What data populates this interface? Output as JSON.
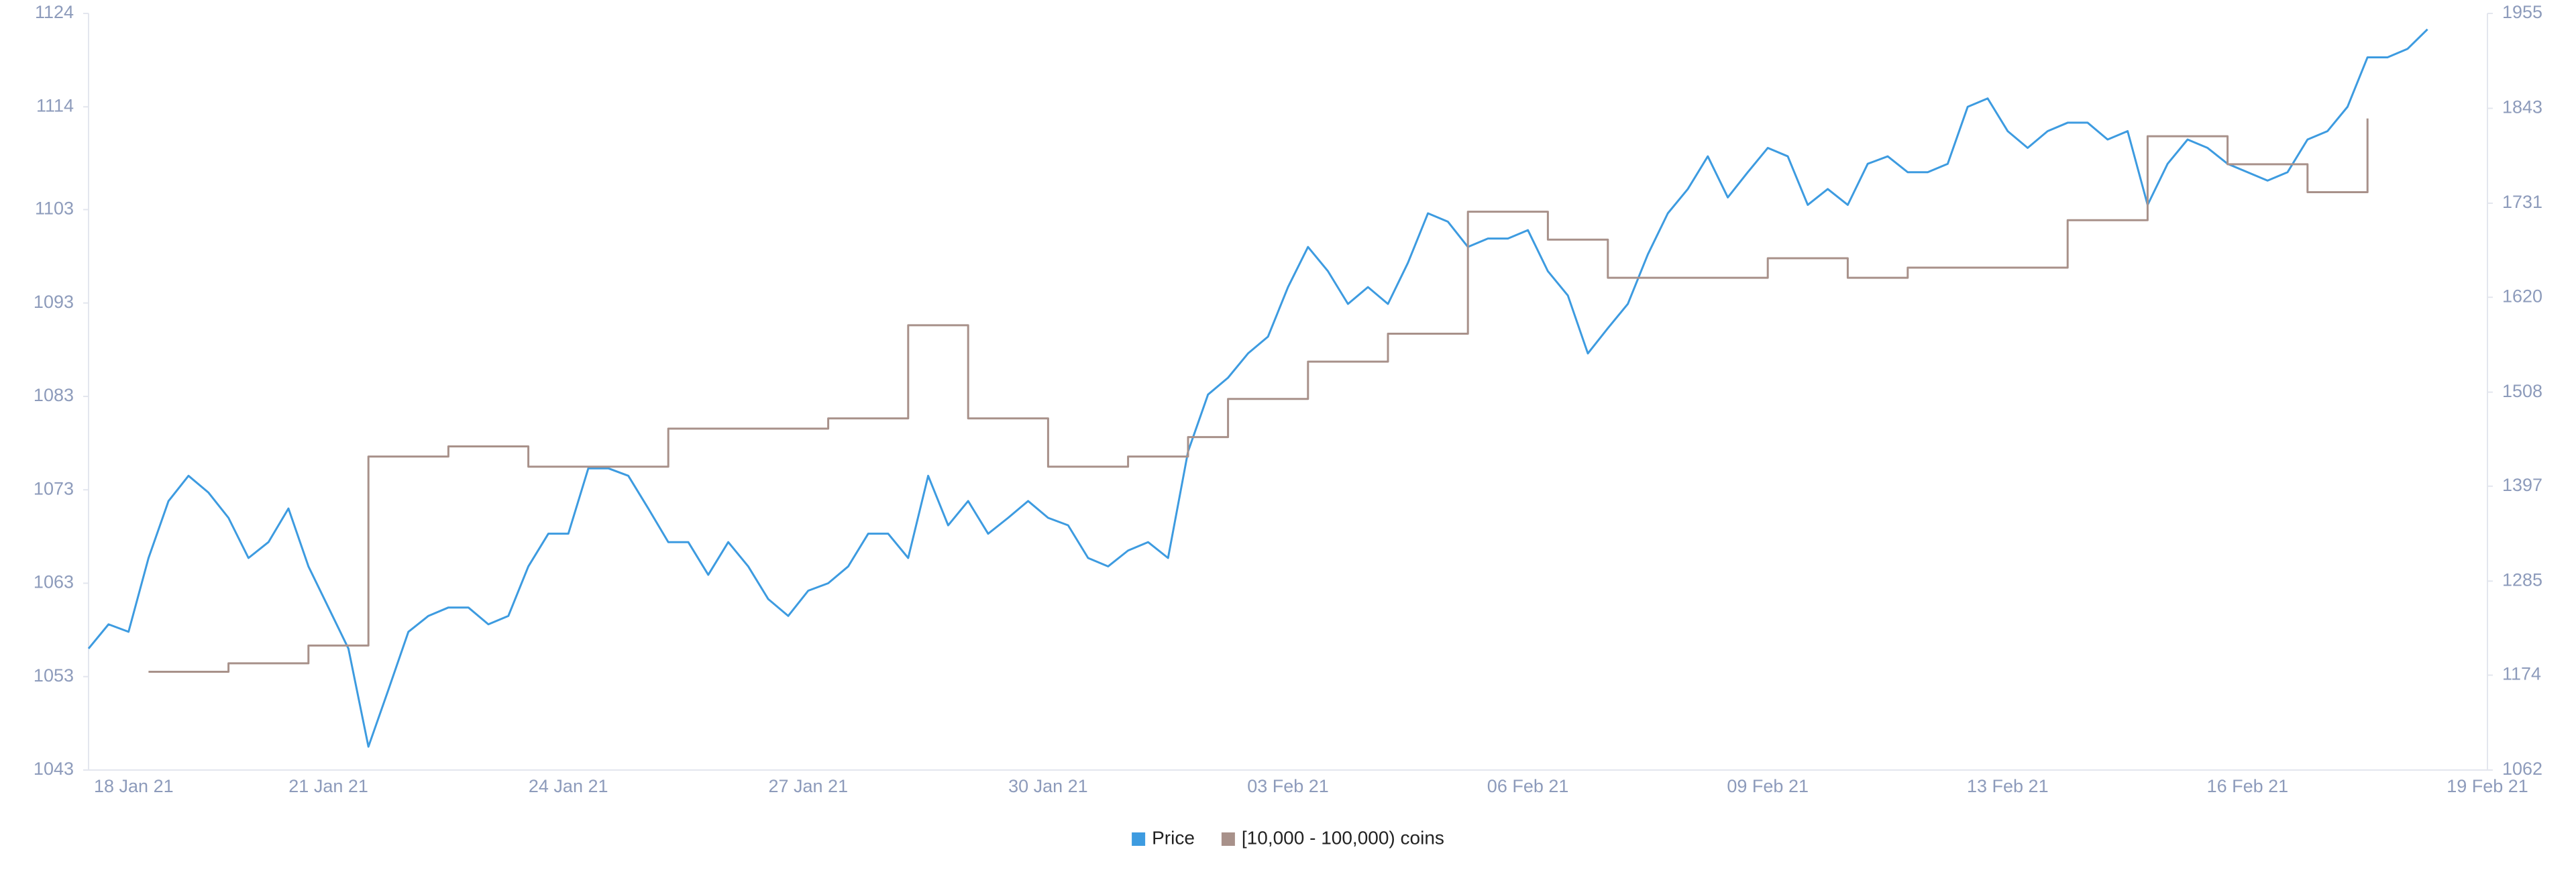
{
  "chart_data": {
    "type": "line",
    "categories": [
      "18 Jan 21",
      null,
      null,
      null,
      null,
      null,
      null,
      null,
      null,
      null,
      null,
      null,
      "21 Jan 21",
      null,
      null,
      null,
      null,
      null,
      null,
      null,
      null,
      null,
      null,
      null,
      "24 Jan 21",
      null,
      null,
      null,
      null,
      null,
      null,
      null,
      null,
      null,
      null,
      null,
      "27 Jan 21",
      null,
      null,
      null,
      null,
      null,
      null,
      null,
      null,
      null,
      null,
      null,
      "30 Jan 21",
      null,
      null,
      null,
      null,
      null,
      null,
      null,
      null,
      null,
      null,
      null,
      "03 Feb 21",
      null,
      null,
      null,
      null,
      null,
      null,
      null,
      null,
      null,
      null,
      null,
      "06 Feb 21",
      null,
      null,
      null,
      null,
      null,
      null,
      null,
      null,
      null,
      null,
      null,
      "09 Feb 21",
      null,
      null,
      null,
      null,
      null,
      null,
      null,
      null,
      null,
      null,
      null,
      "13 Feb 21",
      null,
      null,
      null,
      null,
      null,
      null,
      null,
      null,
      null,
      null,
      null,
      "16 Feb 21",
      null,
      null,
      null,
      null,
      null,
      null,
      null,
      null,
      null,
      null,
      null,
      "19 Feb 21"
    ],
    "series": [
      {
        "name": "Price",
        "color": "#3d9be0",
        "axis": "y",
        "values": [
          1056,
          1058.6,
          1057.8,
          1065.7,
          1071.8,
          1074.5,
          1072.7,
          1070,
          1065.7,
          1067.4,
          1071,
          1064.8,
          1060.4,
          1056,
          1045.5,
          1051.6,
          1057.8,
          1059.5,
          1060.4,
          1060.4,
          1058.6,
          1059.5,
          1064.8,
          1068.3,
          1068.3,
          1075.3,
          1075.3,
          1074.5,
          1071,
          1067.4,
          1067.4,
          1063.9,
          1067.4,
          1064.8,
          1061.3,
          1059.5,
          1062.2,
          1063,
          1064.8,
          1068.3,
          1068.3,
          1065.7,
          1074.5,
          1069.2,
          1071.8,
          1068.3,
          1070,
          1071.8,
          1070,
          1069.2,
          1065.7,
          1064.8,
          1066.5,
          1067.4,
          1065.7,
          1077.1,
          1083.2,
          1085,
          1087.6,
          1089.4,
          1094.7,
          1099,
          1096.4,
          1092.9,
          1094.7,
          1092.9,
          1097.3,
          1102.6,
          1101.7,
          1099,
          1099.9,
          1099.9,
          1100.8,
          1096.4,
          1093.8,
          1087.6,
          1090.3,
          1092.9,
          1098.2,
          1102.6,
          1105.2,
          1108.7,
          1104.3,
          1107,
          1109.6,
          1108.7,
          1103.5,
          1105.2,
          1103.5,
          1107.9,
          1108.7,
          1107,
          1107,
          1107.9,
          1114,
          1114.9,
          1111.4,
          1109.6,
          1111.4,
          1112.3,
          1112.3,
          1110.5,
          1111.4,
          1103.5,
          1107.9,
          1110.5,
          1109.6,
          1107.9,
          1107,
          1106.1,
          1107,
          1110.5,
          1111.4,
          1114,
          1119.3,
          1119.3,
          1120.2,
          1122.3,
          null,
          null,
          null
        ]
      },
      {
        "name": "[10,000 - 100,000) coins",
        "color": "#a8918a",
        "axis": "y2",
        "step": true,
        "values": [
          null,
          null,
          null,
          1178,
          1178,
          1178,
          1178,
          1188,
          1188,
          1188,
          1188,
          1209,
          1209,
          1209,
          1432,
          1432,
          1432,
          1432,
          1444,
          1444,
          1444,
          1444,
          1420,
          1420,
          1420,
          1420,
          1420,
          1420,
          1420,
          1465,
          1465,
          1465,
          1465,
          1465,
          1465,
          1465,
          1465,
          1477,
          1477,
          1477,
          1477,
          1587,
          1587,
          1587,
          1477,
          1477,
          1477,
          1477,
          1420,
          1420,
          1420,
          1420,
          1432,
          1432,
          1432,
          1455,
          1455,
          1500,
          1500,
          1500,
          1500,
          1544,
          1544,
          1544,
          1544,
          1577,
          1577,
          1577,
          1577,
          1721,
          1721,
          1721,
          1721,
          1688,
          1688,
          1688,
          1643,
          1643,
          1643,
          1643,
          1643,
          1643,
          1643,
          1643,
          1666,
          1666,
          1666,
          1666,
          1643,
          1643,
          1643,
          1655,
          1655,
          1655,
          1655,
          1655,
          1655,
          1655,
          1655,
          1711,
          1711,
          1711,
          1711,
          1810,
          1810,
          1810,
          1810,
          1777,
          1777,
          1777,
          1777,
          1744,
          1744,
          1744,
          1831,
          null,
          null,
          null,
          null,
          null,
          null
        ]
      }
    ],
    "ylim": [
      1043,
      1124
    ],
    "yticks": [
      1043,
      1053,
      1063,
      1073,
      1083,
      1093,
      1103,
      1114,
      1124
    ],
    "y2lim": [
      1062,
      1955
    ],
    "y2ticks": [
      1062,
      1174,
      1285,
      1397,
      1508,
      1620,
      1731,
      1843,
      1955
    ],
    "legend": "bottom"
  }
}
